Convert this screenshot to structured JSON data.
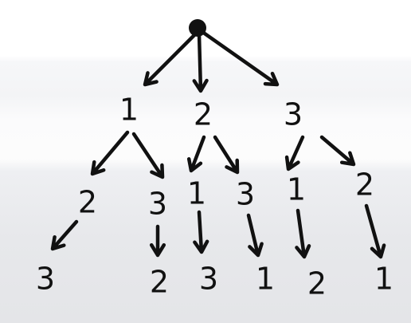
{
  "tree": {
    "level1": [
      {
        "label": "1",
        "children": [
          {
            "label": "2",
            "leaf": "3"
          },
          {
            "label": "3",
            "leaf": "2"
          }
        ]
      },
      {
        "label": "2",
        "children": [
          {
            "label": "1",
            "leaf": "3"
          },
          {
            "label": "3",
            "leaf": "1"
          }
        ]
      },
      {
        "label": "3",
        "children": [
          {
            "label": "1",
            "leaf": "2"
          },
          {
            "label": "2",
            "leaf": "1"
          }
        ]
      }
    ]
  }
}
